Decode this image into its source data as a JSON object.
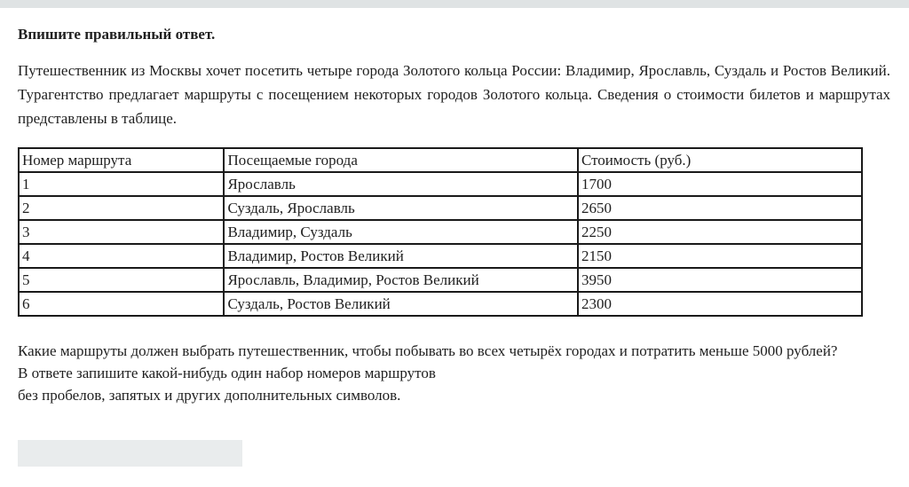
{
  "page": {
    "title": "Впишите правильный ответ.",
    "intro": "Путешественник из Москвы хочет посетить четыре города Золотого кольца России: Владимир, Ярославль, Суздаль и Ростов Великий. Турагентство предлагает маршруты с посещением некоторых городов Золотого кольца. Сведения о стоимости билетов и маршрутах представлены в таблице."
  },
  "table": {
    "headers": [
      "Номер маршрута",
      "Посещаемые города",
      "Стоимость (руб.)"
    ],
    "rows": [
      [
        "1",
        "Ярославль",
        "1700"
      ],
      [
        "2",
        "Суздаль, Ярославль",
        "2650"
      ],
      [
        "3",
        "Владимир, Суздаль",
        "2250"
      ],
      [
        "4",
        "Владимир, Ростов Великий",
        "2150"
      ],
      [
        "5",
        "Ярославль, Владимир, Ростов Великий",
        "3950"
      ],
      [
        "6",
        "Суздаль, Ростов Великий",
        "2300"
      ]
    ]
  },
  "question": {
    "line1": "Какие маршруты должен выбрать путешественник, чтобы побывать во всех четырёх городах и потратить меньше 5000 рублей?",
    "line2": "В ответе запишите какой-нибудь один набор номеров маршрутов",
    "line3": "без пробелов, запятых и других дополнительных символов."
  },
  "answer": {
    "value": ""
  },
  "colors": {
    "top_bar": "#dfe3e4",
    "text": "#1f1f1f",
    "table_border": "#1a1a1a",
    "input_bg": "#e9eced"
  }
}
